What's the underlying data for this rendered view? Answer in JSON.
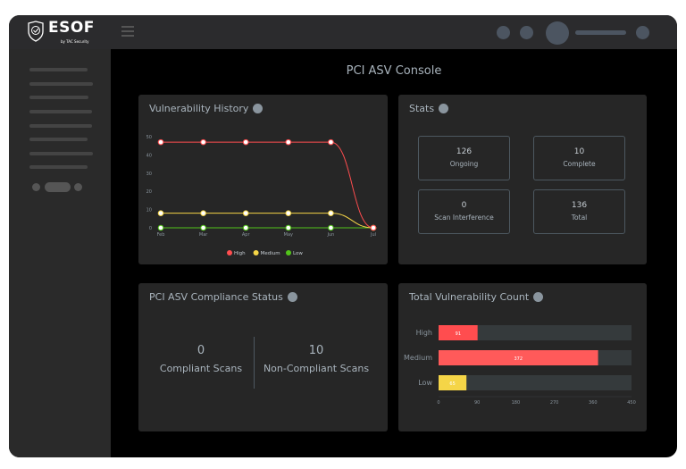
{
  "header": {
    "logo_text": "ESOF",
    "logo_sub": "by TAC Security"
  },
  "page_title": "PCI ASV Console",
  "vulnerability_history": {
    "title": "Vulnerability History"
  },
  "stats": {
    "title": "Stats",
    "items": [
      {
        "value": "126",
        "label": "Ongoing"
      },
      {
        "value": "10",
        "label": "Complete"
      },
      {
        "value": "0",
        "label": "Scan Interference"
      },
      {
        "value": "136",
        "label": "Total"
      }
    ]
  },
  "compliance": {
    "title": "PCI ASV Compliance Status",
    "compliant_value": "0",
    "compliant_label": "Compliant Scans",
    "noncompliant_value": "10",
    "noncompliant_label": "Non-Compliant Scans"
  },
  "total_vuln": {
    "title": "Total Vulnerability Count"
  },
  "chart_data": [
    {
      "type": "line",
      "categories": [
        "Feb",
        "Mar",
        "Apr",
        "May",
        "Jun",
        "Jul"
      ],
      "ylim": [
        0,
        50
      ],
      "yticks": [
        0,
        10,
        20,
        30,
        40,
        50
      ],
      "legend": "bottom",
      "series": [
        {
          "name": "High",
          "color": "#ff4d4f",
          "values": [
            47,
            47,
            47,
            47,
            47,
            0
          ]
        },
        {
          "name": "Medium",
          "color": "#f5d547",
          "values": [
            8,
            8,
            8,
            8,
            8,
            0
          ]
        },
        {
          "name": "Low",
          "color": "#52c41a",
          "values": [
            0,
            0,
            0,
            0,
            0,
            0
          ]
        }
      ]
    },
    {
      "type": "bar",
      "orientation": "horizontal",
      "categories": [
        "High",
        "Medium",
        "Low"
      ],
      "values": [
        91,
        372,
        65
      ],
      "colors": [
        "#ff4d4f",
        "#ff5a5a",
        "#f5d547"
      ],
      "xlim": [
        0,
        450
      ],
      "xticks": [
        0,
        90,
        180,
        270,
        360,
        450
      ]
    }
  ]
}
